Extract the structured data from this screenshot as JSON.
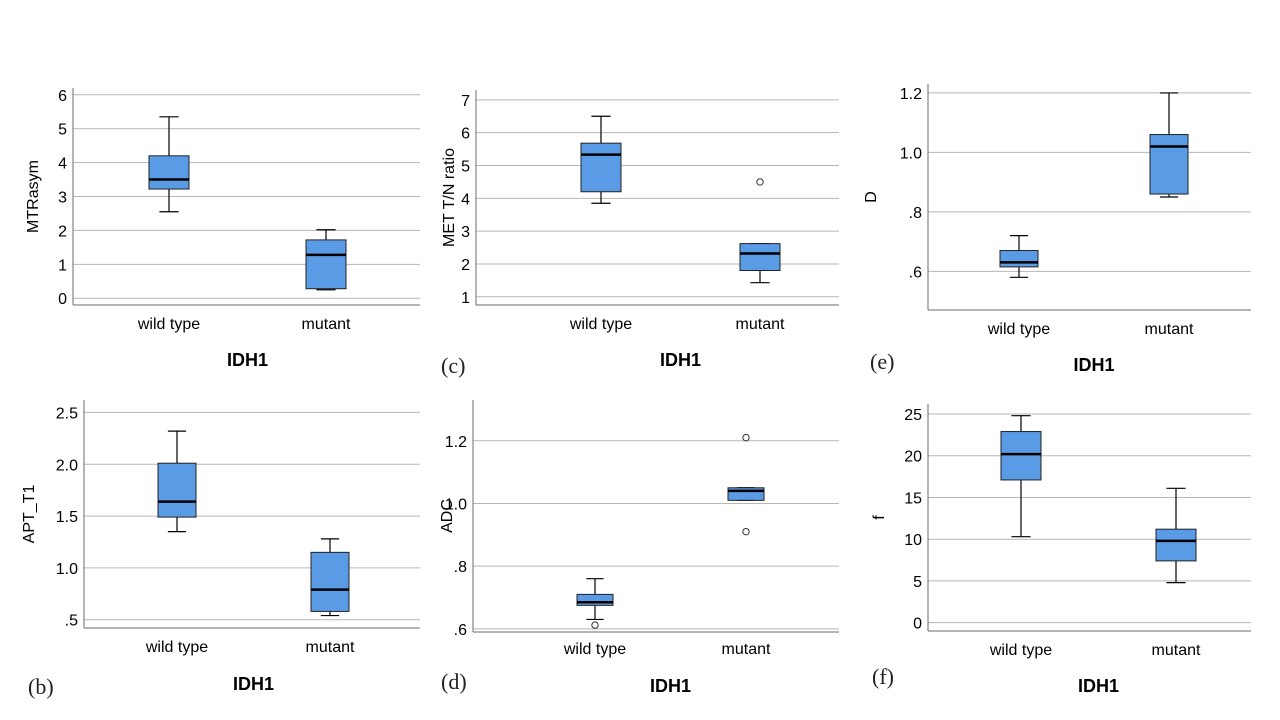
{
  "colors": {
    "box_fill": "#5a9be6",
    "grid": "#b7b7b7",
    "axis": "#6b6b6b"
  },
  "chart_data": [
    {
      "panel": "a",
      "panel_label": "",
      "type": "box",
      "ylabel": "MTRasym",
      "xlabel": "IDH1",
      "categories": [
        "wild type",
        "mutant"
      ],
      "ylim": [
        -0.2,
        6.2
      ],
      "yticks": [
        0,
        1,
        2,
        3,
        4,
        5,
        6
      ],
      "ytick_labels": [
        "0",
        "1",
        "2",
        "3",
        "4",
        "5",
        "6"
      ],
      "boxes": [
        {
          "whisker_low": 2.55,
          "q1": 3.22,
          "median": 3.5,
          "q3": 4.2,
          "whisker_high": 5.35,
          "outliers": []
        },
        {
          "whisker_low": 0.25,
          "q1": 0.28,
          "median": 1.28,
          "q3": 1.72,
          "whisker_high": 2.02,
          "outliers": []
        }
      ]
    },
    {
      "panel": "b",
      "panel_label": "(b)",
      "type": "box",
      "ylabel": "APT_T1",
      "xlabel": "IDH1",
      "categories": [
        "wild type",
        "mutant"
      ],
      "ylim": [
        0.42,
        2.62
      ],
      "yticks": [
        0.5,
        1.0,
        1.5,
        2.0,
        2.5
      ],
      "ytick_labels": [
        ".5",
        "1.0",
        "1.5",
        "2.0",
        "2.5"
      ],
      "boxes": [
        {
          "whisker_low": 1.35,
          "q1": 1.49,
          "median": 1.64,
          "q3": 2.01,
          "whisker_high": 2.32,
          "outliers": []
        },
        {
          "whisker_low": 0.54,
          "q1": 0.58,
          "median": 0.79,
          "q3": 1.15,
          "whisker_high": 1.28,
          "outliers": []
        }
      ]
    },
    {
      "panel": "c",
      "panel_label": "(c)",
      "type": "box",
      "ylabel": "MET T/N ratio",
      "xlabel": "IDH1",
      "categories": [
        "wild type",
        "mutant"
      ],
      "ylim": [
        0.75,
        7.3
      ],
      "yticks": [
        1,
        2,
        3,
        4,
        5,
        6,
        7
      ],
      "ytick_labels": [
        "1",
        "2",
        "3",
        "4",
        "5",
        "6",
        "7"
      ],
      "boxes": [
        {
          "whisker_low": 3.85,
          "q1": 4.2,
          "median": 5.33,
          "q3": 5.68,
          "whisker_high": 6.5,
          "outliers": []
        },
        {
          "whisker_low": 1.43,
          "q1": 1.8,
          "median": 2.32,
          "q3": 2.62,
          "whisker_high": 2.62,
          "outliers": [
            4.5
          ]
        }
      ]
    },
    {
      "panel": "d",
      "panel_label": "(d)",
      "type": "box",
      "ylabel": "ADC",
      "xlabel": "IDH1",
      "categories": [
        "wild type",
        "mutant"
      ],
      "ylim": [
        0.59,
        1.33
      ],
      "yticks": [
        0.6,
        0.8,
        1.0,
        1.2
      ],
      "ytick_labels": [
        ".6",
        ".8",
        "1.0",
        "1.2"
      ],
      "boxes": [
        {
          "whisker_low": 0.63,
          "q1": 0.675,
          "median": 0.685,
          "q3": 0.71,
          "whisker_high": 0.76,
          "outliers": [
            0.612
          ]
        },
        {
          "whisker_low": 1.01,
          "q1": 1.01,
          "median": 1.04,
          "q3": 1.05,
          "whisker_high": 1.05,
          "outliers": [
            1.21,
            0.91
          ]
        }
      ]
    },
    {
      "panel": "e",
      "panel_label": "(e)",
      "type": "box",
      "ylabel": "D",
      "xlabel": "IDH1",
      "categories": [
        "wild type",
        "mutant"
      ],
      "ylim": [
        0.47,
        1.23
      ],
      "yticks": [
        0.6,
        0.8,
        1.0,
        1.2
      ],
      "ytick_labels": [
        ".6",
        ".8",
        "1.0",
        "1.2"
      ],
      "boxes": [
        {
          "whisker_low": 0.58,
          "q1": 0.615,
          "median": 0.63,
          "q3": 0.67,
          "whisker_high": 0.72,
          "outliers": []
        },
        {
          "whisker_low": 0.85,
          "q1": 0.86,
          "median": 1.02,
          "q3": 1.06,
          "whisker_high": 1.2,
          "outliers": []
        }
      ]
    },
    {
      "panel": "f",
      "panel_label": "(f)",
      "type": "box",
      "ylabel": "f",
      "xlabel": "IDH1",
      "categories": [
        "wild type",
        "mutant"
      ],
      "ylim": [
        -1,
        26.2
      ],
      "yticks": [
        0,
        5,
        10,
        15,
        20,
        25
      ],
      "ytick_labels": [
        "0",
        "5",
        "10",
        "15",
        "20",
        "25"
      ],
      "boxes": [
        {
          "whisker_low": 10.3,
          "q1": 17.1,
          "median": 20.2,
          "q3": 22.9,
          "whisker_high": 24.8,
          "outliers": []
        },
        {
          "whisker_low": 4.8,
          "q1": 7.4,
          "median": 9.8,
          "q3": 11.2,
          "whisker_high": 16.1,
          "outliers": []
        }
      ]
    }
  ]
}
